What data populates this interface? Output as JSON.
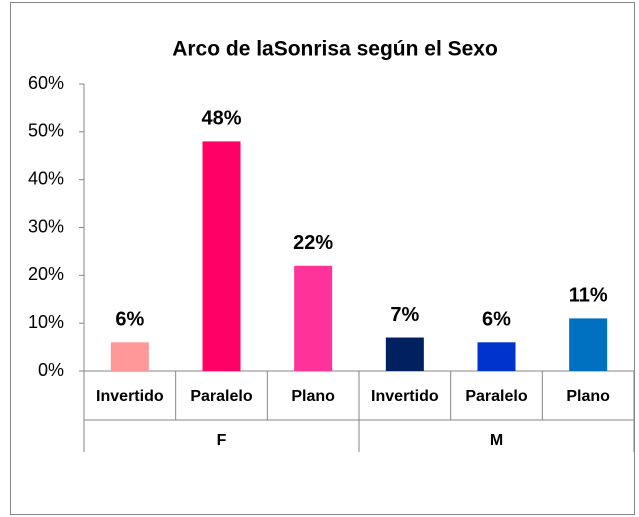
{
  "chart_data": {
    "type": "bar",
    "title": "Arco de laSonrisa según el Sexo",
    "categories": [
      "Invertido",
      "Paralelo",
      "Plano",
      "Invertido",
      "Paralelo",
      "Plano"
    ],
    "groups": [
      "F",
      "M"
    ],
    "values": [
      6,
      48,
      22,
      7,
      6,
      11
    ],
    "value_labels": [
      "6%",
      "48%",
      "22%",
      "7%",
      "6%",
      "11%"
    ],
    "colors": [
      "#ff9999",
      "#ff0066",
      "#ff3399",
      "#002060",
      "#0033cc",
      "#0070c0"
    ],
    "ylim": [
      0,
      60
    ],
    "yticks": [
      {
        "value": 0,
        "label": "0%"
      },
      {
        "value": 10,
        "label": "10%"
      },
      {
        "value": 20,
        "label": "20%"
      },
      {
        "value": 30,
        "label": "30%"
      },
      {
        "value": 40,
        "label": "40%"
      },
      {
        "value": 50,
        "label": "50%"
      },
      {
        "value": 60,
        "label": "60%"
      }
    ],
    "grid": false
  }
}
